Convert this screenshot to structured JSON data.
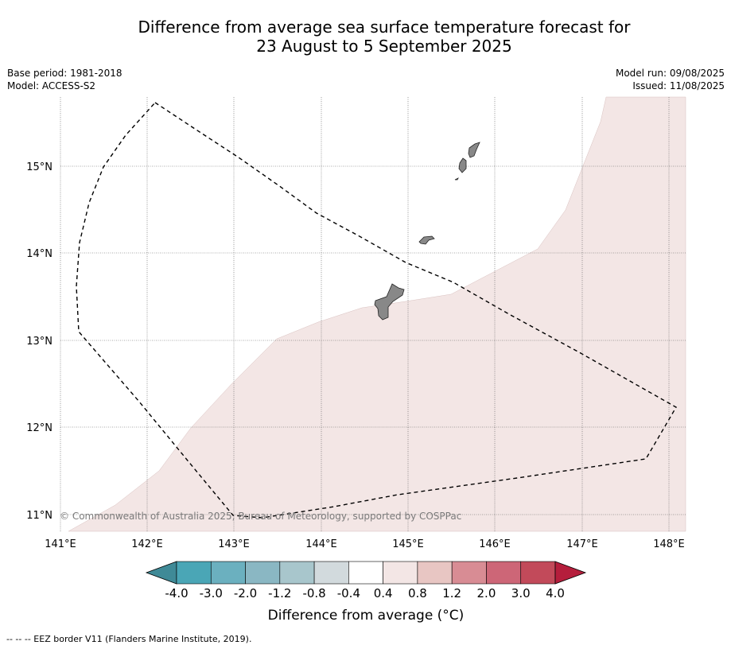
{
  "title": {
    "line1": "Difference from average sea surface temperature forecast for",
    "line2": "23 August to 5 September 2025"
  },
  "meta_left": {
    "base_period": "Base period: 1981-2018",
    "model": "Model: ACCESS-S2"
  },
  "meta_right": {
    "model_run": "Model run: 09/08/2025",
    "issued": "Issued: 11/08/2025"
  },
  "map": {
    "lon_labels": [
      "141°E",
      "142°E",
      "143°E",
      "144°E",
      "145°E",
      "146°E",
      "147°E",
      "148°E"
    ],
    "lat_labels": [
      "15°N",
      "14°N",
      "13°N",
      "12°N",
      "11°N"
    ],
    "copyright": "© Commonwealth of Australia 2025, Bureau of Meteorology, supported by COSPPac",
    "anomaly_fill_color": "#f3e6e5",
    "anomaly_category": "0.4 to 0.8"
  },
  "colorbar": {
    "title": "Difference from average (°C)",
    "tick_labels": [
      "-4.0",
      "-3.0",
      "-2.0",
      "-1.2",
      "-0.8",
      "-0.4",
      "0.4",
      "0.8",
      "1.2",
      "2.0",
      "3.0",
      "4.0"
    ],
    "colors": [
      "#3f8a97",
      "#4aa6b6",
      "#6bb0bf",
      "#8ab7c3",
      "#a8c6cc",
      "#d2dadd",
      "#ffffff",
      "#f3e6e5",
      "#e8c6c3",
      "#d88c94",
      "#cd6677",
      "#c24a5a",
      "#b51e3c"
    ]
  },
  "footer": "--  --  -- EEZ border V11 (Flanders Marine Institute, 2019)."
}
